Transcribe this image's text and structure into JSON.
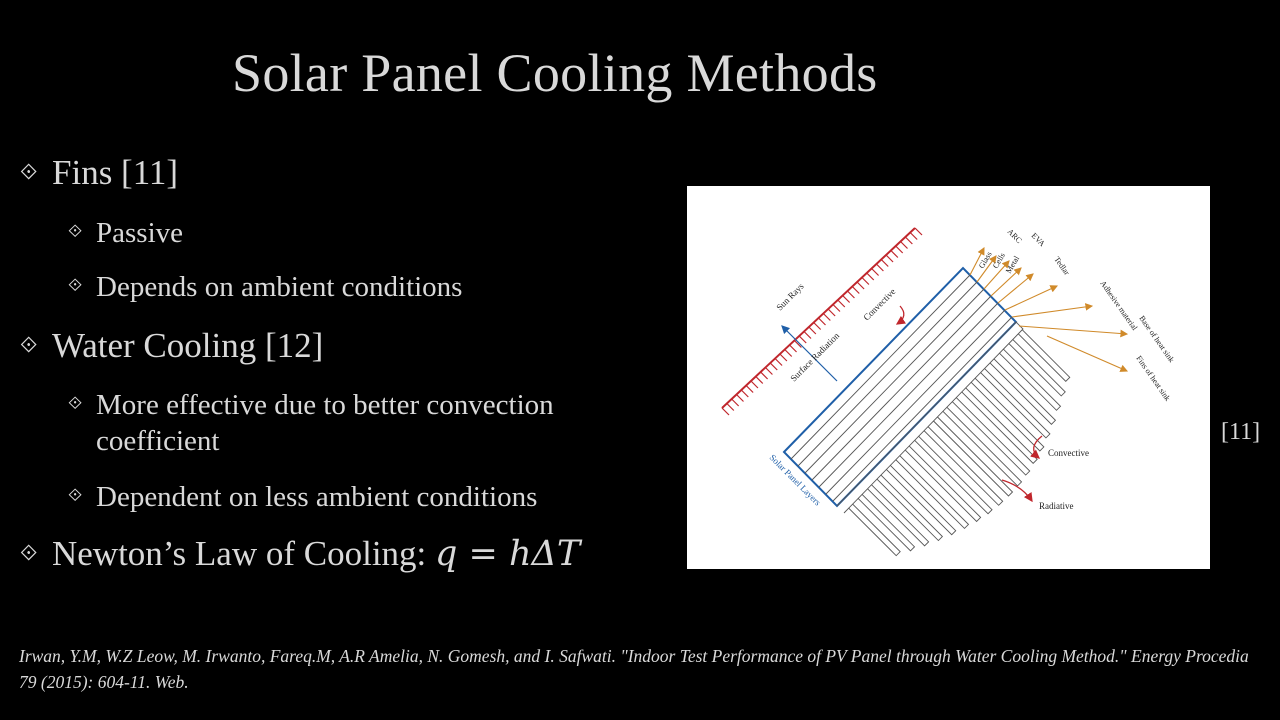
{
  "slide": {
    "title": "Solar Panel Cooling Methods",
    "bullets": {
      "fins": "Fins [11]",
      "fins_passive": "Passive",
      "fins_ambient": "Depends on ambient conditions",
      "water": "Water Cooling [12]",
      "water_effective": "More effective due to better convection coefficient",
      "water_ambient": "Dependent on less ambient conditions",
      "newton_label": "Newton’s Law of Cooling: ",
      "newton_formula": "q = hΔT"
    },
    "figure_ref": "[11]",
    "citation": "Irwan, Y.M, W.Z Leow, M. Irwanto, Fareq.M, A.R Amelia, N. Gomesh, and I. Safwati. \"Indoor Test Performance of PV Panel through Water Cooling Method.\" Energy Procedia 79 (2015): 604-11. Web."
  },
  "figure": {
    "labels": {
      "sun_rays": "Sun Rays",
      "convective_top": "Convective",
      "surface_radiation": "Surface Radiation",
      "solar_panel_layers": "Solar Panel Layers",
      "glass": "Glass",
      "cells": "Cells",
      "arc": "ARC",
      "eva": "EVA",
      "metal": "Metal",
      "tedlar": "Tedlar",
      "adhesive": "Adhesive material",
      "base_heat_sink": "Base of heat sink",
      "fins_heat_sink": "Fins of heat sink",
      "convective_bottom": "Convective",
      "radiative": "Radiative"
    },
    "colors": {
      "sun_rays": "#c0262c",
      "panel_outline": "#1f5fa8",
      "arrows": "#d08a2a",
      "heat_arrows": "#c0262c"
    }
  }
}
